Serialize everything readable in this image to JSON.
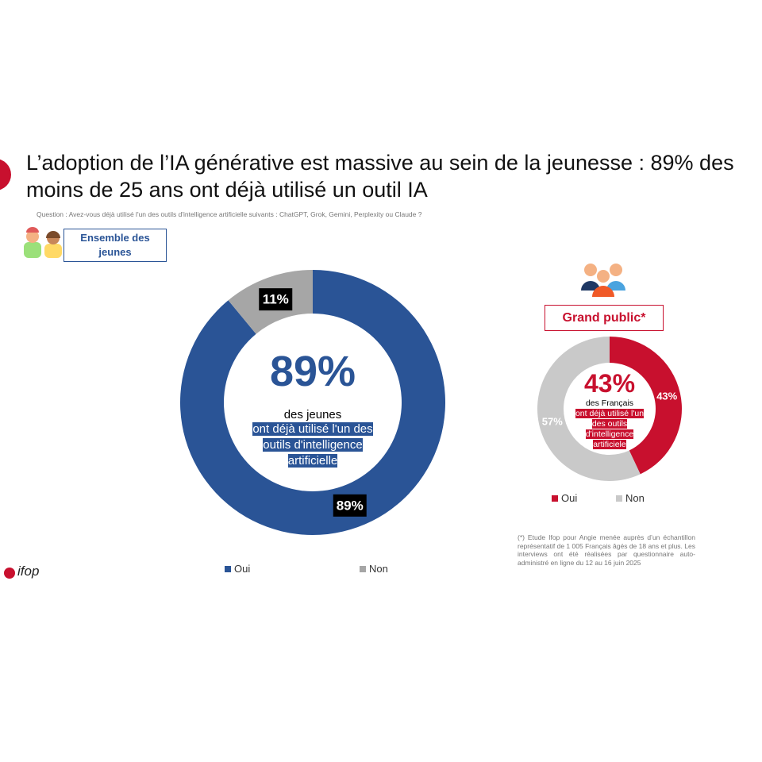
{
  "title": "L’adoption de l’IA générative est massive au sein de la jeunesse : 89% des moins de 25 ans ont déjà utilisé un outil IA",
  "question": "Question : Avez-vous déjà utilisé l'un des outils d'intelligence artificielle suivants : ChatGPT, Grok, Gemini, Perplexity ou Claude ?",
  "footnote": "(*) Etude Ifop pour Angie menée auprès d’un échantillon représentatif de 1 005 Français âgés de 18 ans et plus. Les interviews ont été réalisées par questionnaire auto-administré en ligne du 12 au 16 juin 2025",
  "logo": "ifop",
  "chart_data": [
    {
      "type": "donut",
      "title": "Ensemble des jeunes",
      "categories": [
        "Oui",
        "Non"
      ],
      "values": [
        89,
        11
      ],
      "value_labels": [
        "89%",
        "11%"
      ],
      "colors": [
        "#2a5496",
        "#a6a6a6"
      ],
      "center_label": "des jeunes",
      "center_text": "ont déjà utilisé l'un des outils d'intelligence artificielle",
      "legend": "bottom"
    },
    {
      "type": "donut",
      "title": "Grand public*",
      "categories": [
        "Oui",
        "Non"
      ],
      "values": [
        43,
        57
      ],
      "value_labels": [
        "43%",
        "57%"
      ],
      "colors": [
        "#c8102e",
        "#c9c9c9"
      ],
      "center_label": "des Français",
      "center_text": "ont déjà utilisé l'un des outils d'intelligence artificiele",
      "legend": "bottom"
    }
  ]
}
